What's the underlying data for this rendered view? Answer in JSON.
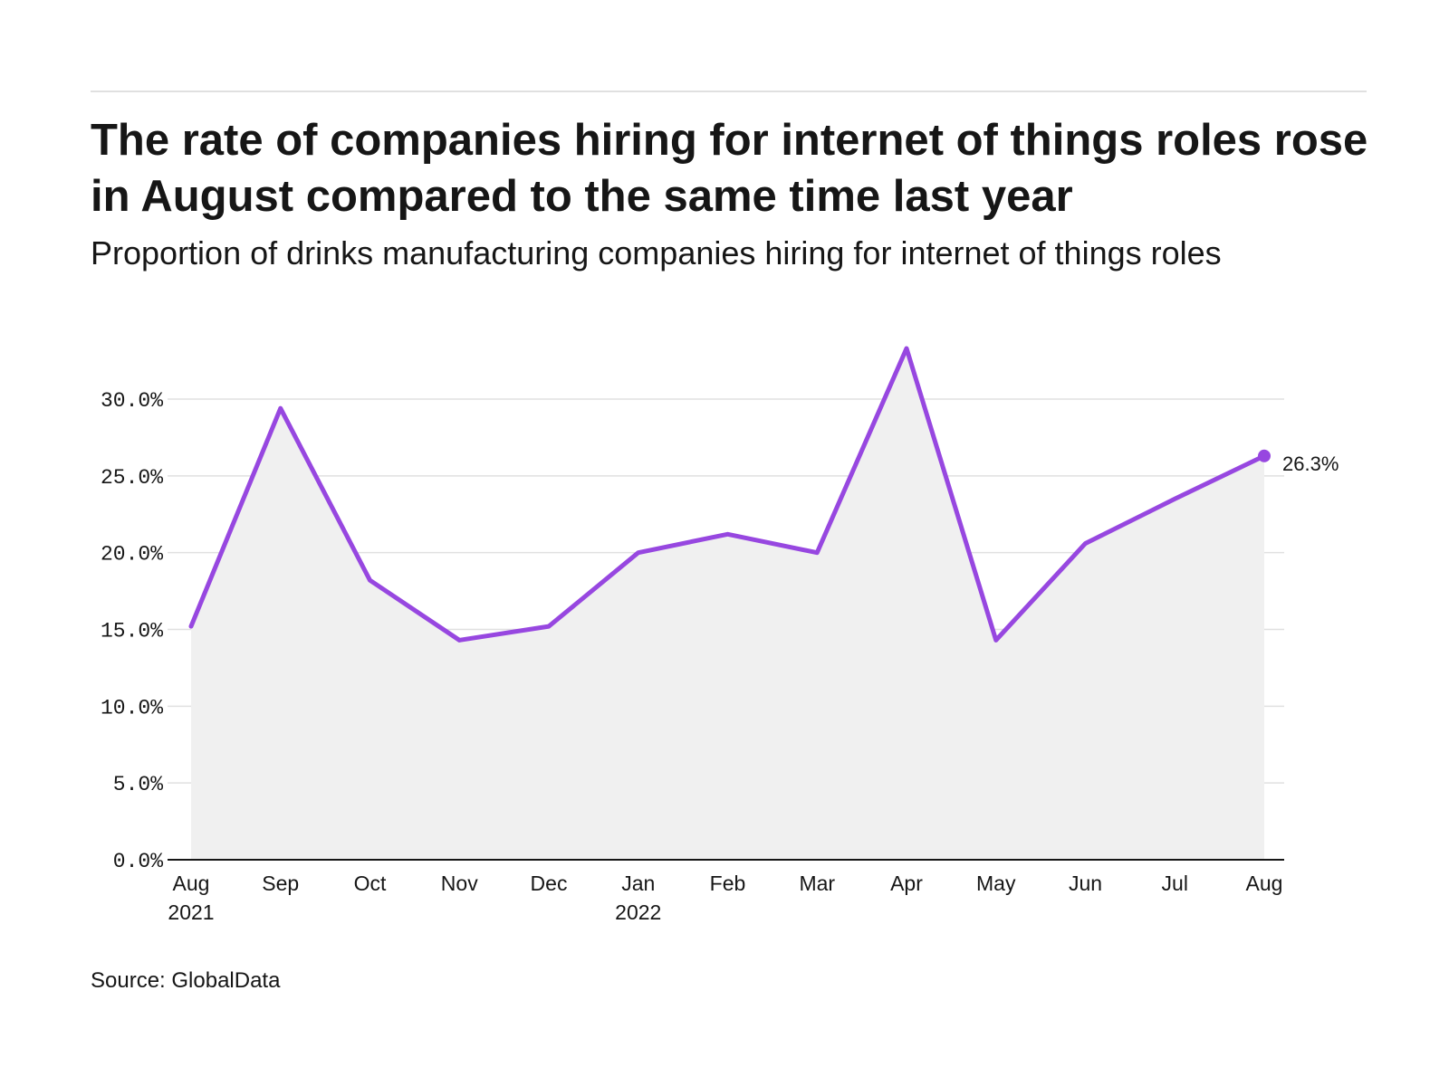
{
  "header": {
    "title": "The rate of companies hiring for internet of things roles rose in August compared to the same time last year",
    "subtitle": "Proportion of drinks manufacturing companies hiring for internet of things roles"
  },
  "footer": {
    "source": "Source: GlobalData"
  },
  "colors": {
    "line": "#9747e0",
    "area": "#f0f0f0",
    "grid": "#e0e0e0",
    "axis": "#161616"
  },
  "chart_data": {
    "type": "area",
    "title": "The rate of companies hiring for internet of things roles rose in August compared to the same time last year",
    "subtitle": "Proportion of drinks manufacturing companies hiring for internet of things roles",
    "xlabel": "",
    "ylabel": "",
    "categories": [
      "Aug 2021",
      "Sep 2021",
      "Oct 2021",
      "Nov 2021",
      "Dec 2021",
      "Jan 2022",
      "Feb 2022",
      "Mar 2022",
      "Apr 2022",
      "May 2022",
      "Jun 2022",
      "Jul 2022",
      "Aug 2022"
    ],
    "x_tick_labels": [
      [
        "Aug",
        "2021"
      ],
      [
        "Sep"
      ],
      [
        "Oct"
      ],
      [
        "Nov"
      ],
      [
        "Dec"
      ],
      [
        "Jan",
        "2022"
      ],
      [
        "Feb"
      ],
      [
        "Mar"
      ],
      [
        "Apr"
      ],
      [
        "May"
      ],
      [
        "Jun"
      ],
      [
        "Jul"
      ],
      [
        "Aug"
      ]
    ],
    "series": [
      {
        "values": [
          15.2,
          29.4,
          18.2,
          14.3,
          15.2,
          20.0,
          21.2,
          20.0,
          33.3,
          14.3,
          20.6,
          23.5,
          26.3
        ]
      }
    ],
    "end_label": "26.3%",
    "y_ticks": [
      "0.0%",
      "5.0%",
      "10.0%",
      "15.0%",
      "20.0%",
      "25.0%",
      "30.0%"
    ],
    "y_tick_values": [
      0,
      5,
      10,
      15,
      20,
      25,
      30
    ],
    "ylim": [
      0,
      35
    ],
    "grid": true,
    "legend": "none"
  }
}
